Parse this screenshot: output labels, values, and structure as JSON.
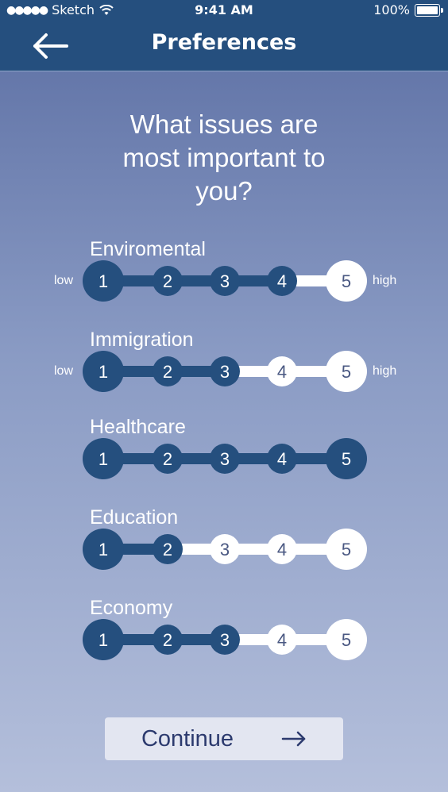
{
  "status_bar": {
    "carrier": "Sketch",
    "signal_dots": "●●●●●",
    "time": "9:41 AM",
    "battery": "100%"
  },
  "header": {
    "back_icon": "arrow-left-icon",
    "title": "Preferences"
  },
  "question": {
    "lines": [
      "What issues are",
      "most important to",
      "you?"
    ]
  },
  "scale_numbers": [
    "1",
    "2",
    "3",
    "4",
    "5"
  ],
  "end_labels": {
    "low": "low",
    "high": "high"
  },
  "issues": [
    {
      "label": "Enviromental",
      "selected": 4,
      "show_end_labels": true
    },
    {
      "label": "Immigration",
      "selected": 3,
      "show_end_labels": true
    },
    {
      "label": "Healthcare",
      "selected": 5,
      "show_end_labels": false
    },
    {
      "label": "Education",
      "selected": 2,
      "show_end_labels": false
    },
    {
      "label": "Economy",
      "selected": 3,
      "show_end_labels": false
    }
  ],
  "colors": {
    "header": "#254f7e",
    "filled": "#254f7e",
    "unfilled": "#ffffff",
    "unfilled_text": "#4a5882",
    "button_bg": "#e3e6f1",
    "button_text": "#2c3a6e"
  },
  "continue_button": {
    "label": "Continue",
    "icon": "arrow-right-icon"
  }
}
